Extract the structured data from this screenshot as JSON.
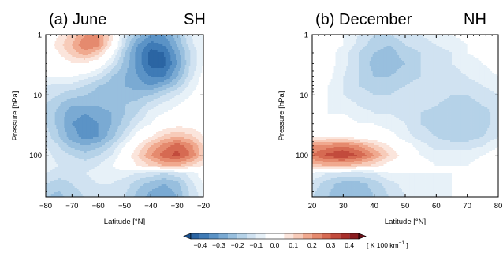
{
  "chart_data": [
    {
      "type": "heatmap",
      "panel_label": "(a) June",
      "hemisphere_label": "SH",
      "xlabel": "Latitude [°N]",
      "ylabel": "Pressure [hPa]",
      "xlim": [
        -80,
        -20
      ],
      "xticks": [
        "-80",
        "-70",
        "-60",
        "-50",
        "-40",
        "-30",
        "-20"
      ],
      "yscale": "log",
      "ylim": [
        1,
        500
      ],
      "yticks": [
        "1",
        "10",
        "100"
      ],
      "x": [
        -80,
        -75,
        -70,
        -65,
        -60,
        -55,
        -50,
        -45,
        -40,
        -35,
        -30,
        -25,
        -20
      ],
      "y": [
        1,
        1.5,
        2,
        3,
        5,
        7,
        10,
        15,
        20,
        30,
        50,
        70,
        100,
        150,
        200,
        300,
        500
      ],
      "z": [
        [
          0.0,
          0.05,
          0.12,
          0.2,
          0.2,
          0.08,
          -0.12,
          -0.22,
          -0.3,
          -0.3,
          -0.22,
          -0.1,
          -0.05
        ],
        [
          0.0,
          0.08,
          0.15,
          0.25,
          0.22,
          0.05,
          -0.15,
          -0.3,
          -0.38,
          -0.35,
          -0.25,
          -0.12,
          -0.05
        ],
        [
          0.0,
          0.05,
          0.12,
          0.18,
          0.12,
          -0.02,
          -0.2,
          -0.32,
          -0.42,
          -0.4,
          -0.28,
          -0.15,
          -0.05
        ],
        [
          0.0,
          0.0,
          0.05,
          0.05,
          0.0,
          -0.1,
          -0.22,
          -0.32,
          -0.42,
          -0.42,
          -0.3,
          -0.15,
          -0.05
        ],
        [
          -0.05,
          -0.05,
          -0.05,
          -0.08,
          -0.12,
          -0.2,
          -0.25,
          -0.3,
          -0.35,
          -0.35,
          -0.25,
          -0.12,
          -0.03
        ],
        [
          -0.1,
          -0.12,
          -0.12,
          -0.15,
          -0.2,
          -0.22,
          -0.25,
          -0.28,
          -0.3,
          -0.25,
          -0.18,
          -0.08,
          -0.02
        ],
        [
          -0.12,
          -0.15,
          -0.18,
          -0.2,
          -0.22,
          -0.22,
          -0.22,
          -0.22,
          -0.2,
          -0.15,
          -0.1,
          -0.05,
          -0.02
        ],
        [
          -0.15,
          -0.2,
          -0.25,
          -0.25,
          -0.25,
          -0.22,
          -0.2,
          -0.18,
          -0.12,
          -0.08,
          -0.05,
          -0.02,
          -0.02
        ],
        [
          -0.15,
          -0.22,
          -0.28,
          -0.3,
          -0.28,
          -0.25,
          -0.2,
          -0.15,
          -0.08,
          -0.05,
          -0.03,
          -0.02,
          -0.02
        ],
        [
          -0.15,
          -0.22,
          -0.3,
          -0.32,
          -0.3,
          -0.25,
          -0.18,
          -0.1,
          -0.05,
          0.0,
          0.02,
          0.02,
          0.0
        ],
        [
          -0.12,
          -0.2,
          -0.28,
          -0.32,
          -0.3,
          -0.22,
          -0.12,
          -0.02,
          0.05,
          0.12,
          0.15,
          0.12,
          0.05
        ],
        [
          -0.1,
          -0.15,
          -0.22,
          -0.25,
          -0.22,
          -0.15,
          -0.05,
          0.05,
          0.15,
          0.22,
          0.28,
          0.22,
          0.1
        ],
        [
          -0.08,
          -0.12,
          -0.15,
          -0.18,
          -0.15,
          -0.1,
          0.0,
          0.1,
          0.2,
          0.28,
          0.32,
          0.25,
          0.12
        ],
        [
          -0.08,
          -0.1,
          -0.12,
          -0.12,
          -0.1,
          -0.05,
          0.0,
          0.05,
          0.1,
          0.15,
          0.15,
          0.1,
          0.05
        ],
        [
          -0.1,
          -0.12,
          -0.12,
          -0.1,
          -0.08,
          -0.08,
          -0.08,
          -0.1,
          -0.12,
          -0.15,
          -0.12,
          -0.08,
          -0.02
        ],
        [
          -0.15,
          -0.18,
          -0.15,
          -0.12,
          -0.1,
          -0.1,
          -0.12,
          -0.18,
          -0.22,
          -0.25,
          -0.22,
          -0.12,
          -0.05
        ],
        [
          -0.2,
          -0.22,
          -0.18,
          -0.15,
          -0.12,
          -0.12,
          -0.15,
          -0.22,
          -0.28,
          -0.3,
          -0.25,
          -0.15,
          -0.08
        ]
      ]
    },
    {
      "type": "heatmap",
      "panel_label": "(b) December",
      "hemisphere_label": "NH",
      "xlabel": "Latitude [°N]",
      "ylabel": "Pressure [hPa]",
      "xlim": [
        20,
        80
      ],
      "xticks": [
        "20",
        "30",
        "40",
        "50",
        "60",
        "70",
        "80"
      ],
      "yscale": "log",
      "ylim": [
        1,
        500
      ],
      "yticks": [
        "1",
        "10",
        "100"
      ],
      "x": [
        20,
        25,
        30,
        35,
        40,
        45,
        50,
        55,
        60,
        65,
        70,
        75,
        80
      ],
      "y": [
        1,
        1.5,
        2,
        3,
        5,
        7,
        10,
        15,
        20,
        30,
        50,
        70,
        100,
        150,
        200,
        300,
        500
      ],
      "z": [
        [
          0.0,
          -0.02,
          -0.05,
          -0.1,
          -0.15,
          -0.15,
          -0.12,
          -0.1,
          -0.08,
          -0.05,
          -0.03,
          -0.02,
          -0.02
        ],
        [
          0.0,
          -0.02,
          -0.05,
          -0.12,
          -0.18,
          -0.2,
          -0.15,
          -0.12,
          -0.1,
          -0.08,
          -0.05,
          -0.02,
          -0.02
        ],
        [
          0.0,
          -0.02,
          -0.08,
          -0.15,
          -0.2,
          -0.22,
          -0.18,
          -0.15,
          -0.12,
          -0.1,
          -0.05,
          -0.03,
          -0.02
        ],
        [
          0.0,
          -0.02,
          -0.08,
          -0.15,
          -0.22,
          -0.22,
          -0.2,
          -0.15,
          -0.12,
          -0.1,
          -0.08,
          -0.05,
          -0.02
        ],
        [
          0.0,
          -0.03,
          -0.1,
          -0.15,
          -0.2,
          -0.2,
          -0.18,
          -0.15,
          -0.12,
          -0.12,
          -0.1,
          -0.08,
          -0.05
        ],
        [
          0.0,
          -0.05,
          -0.1,
          -0.15,
          -0.18,
          -0.18,
          -0.15,
          -0.12,
          -0.12,
          -0.12,
          -0.12,
          -0.1,
          -0.08
        ],
        [
          -0.02,
          -0.05,
          -0.1,
          -0.12,
          -0.15,
          -0.15,
          -0.12,
          -0.12,
          -0.12,
          -0.15,
          -0.15,
          -0.12,
          -0.1
        ],
        [
          -0.02,
          -0.05,
          -0.08,
          -0.1,
          -0.12,
          -0.12,
          -0.12,
          -0.12,
          -0.15,
          -0.18,
          -0.18,
          -0.15,
          -0.12
        ],
        [
          -0.02,
          -0.05,
          -0.05,
          -0.08,
          -0.1,
          -0.1,
          -0.12,
          -0.15,
          -0.18,
          -0.2,
          -0.2,
          -0.18,
          -0.12
        ],
        [
          0.0,
          -0.02,
          -0.02,
          -0.05,
          -0.05,
          -0.08,
          -0.1,
          -0.15,
          -0.18,
          -0.2,
          -0.2,
          -0.18,
          -0.12
        ],
        [
          0.05,
          0.05,
          0.05,
          0.02,
          0.0,
          -0.02,
          -0.08,
          -0.12,
          -0.15,
          -0.18,
          -0.18,
          -0.15,
          -0.1
        ],
        [
          0.2,
          0.22,
          0.25,
          0.2,
          0.12,
          0.05,
          -0.02,
          -0.08,
          -0.12,
          -0.12,
          -0.12,
          -0.1,
          -0.05
        ],
        [
          0.25,
          0.32,
          0.35,
          0.3,
          0.2,
          0.1,
          0.02,
          -0.05,
          -0.08,
          -0.08,
          -0.08,
          -0.05,
          -0.02
        ],
        [
          0.12,
          0.15,
          0.15,
          0.12,
          0.08,
          0.02,
          0.0,
          -0.02,
          -0.05,
          -0.05,
          -0.05,
          -0.02,
          0.0
        ],
        [
          -0.05,
          -0.1,
          -0.12,
          -0.12,
          -0.1,
          -0.05,
          -0.05,
          -0.05,
          -0.05,
          -0.05,
          -0.02,
          0.0,
          0.0
        ],
        [
          -0.12,
          -0.18,
          -0.22,
          -0.22,
          -0.18,
          -0.12,
          -0.08,
          -0.08,
          -0.08,
          -0.05,
          -0.03,
          -0.02,
          0.0
        ],
        [
          -0.15,
          -0.2,
          -0.25,
          -0.25,
          -0.2,
          -0.15,
          -0.1,
          -0.1,
          -0.1,
          -0.05,
          -0.03,
          -0.02,
          0.0
        ]
      ]
    }
  ],
  "colorbar": {
    "tick_labels": [
      "−0.4",
      "−0.3",
      "−0.2",
      "−0.1",
      "0.0",
      "0.1",
      "0.2",
      "0.3",
      "0.4"
    ],
    "tick_values": [
      -0.4,
      -0.3,
      -0.2,
      -0.1,
      0.0,
      0.1,
      0.2,
      0.3,
      0.4
    ],
    "levels": [
      -0.45,
      -0.4,
      -0.35,
      -0.3,
      -0.25,
      -0.2,
      -0.15,
      -0.1,
      -0.05,
      0.0,
      0.05,
      0.1,
      0.15,
      0.2,
      0.25,
      0.3,
      0.35,
      0.4,
      0.45
    ],
    "colors": [
      "#1a4f8c",
      "#2b65a3",
      "#3f7bb6",
      "#5b93c6",
      "#7aaad3",
      "#98bfde",
      "#b5d2e8",
      "#d0e2f1",
      "#e7f1f8",
      "#ffffff",
      "#ffffff",
      "#fbe5dc",
      "#f7cbb9",
      "#f0a98f",
      "#e58a6e",
      "#d66a52",
      "#c24b3c",
      "#a8302c",
      "#8a1c20",
      "#6b0f18"
    ],
    "units": "[ K  100 km",
    "units_superscript": "−1",
    "units_close": " ]"
  }
}
